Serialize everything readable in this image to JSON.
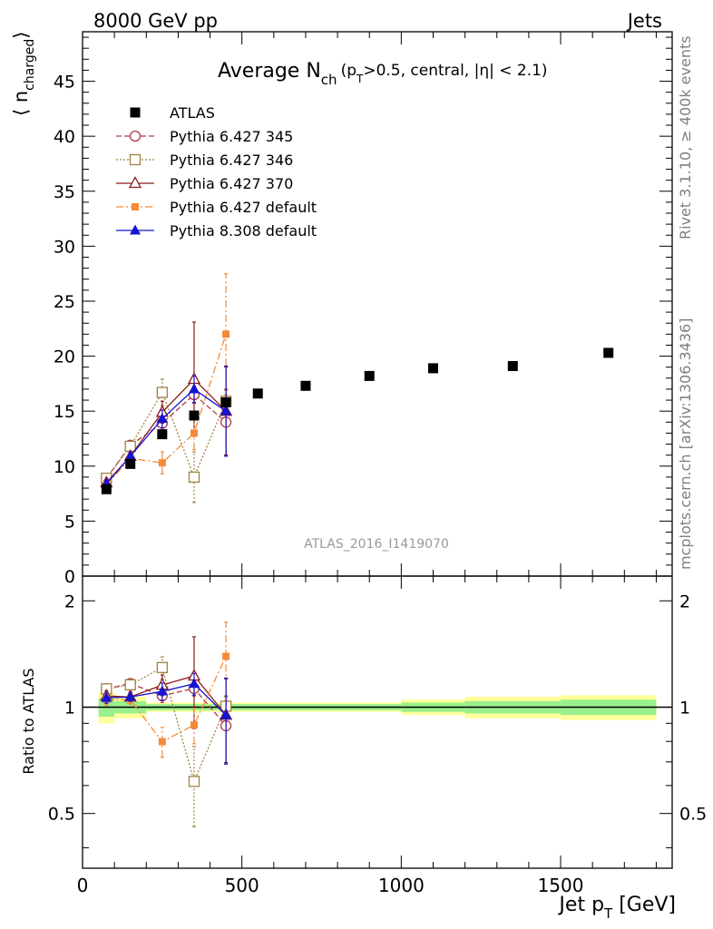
{
  "header": {
    "left": "8000 GeV pp",
    "right": "Jets"
  },
  "side": {
    "rivet": "Rivet 3.1.10, ≥ 400k events",
    "mcplots": "mcplots.cern.ch [arXiv:1306.3436]"
  },
  "chart_data": {
    "type": "scatter",
    "title_main": "Average N",
    "title_sub": "ch",
    "title_cut": "(p",
    "title_cut_sub": "T",
    "title_cut_rest": ">0.5, central, |η| < 2.1)",
    "ylabel_pre": "⟨ n",
    "ylabel_sub": "charged",
    "ylabel_post": "⟩",
    "xlabel_pre": "Jet p",
    "xlabel_sub": "T",
    "xlabel_post": " [GeV]",
    "ratio_ylabel": "Ratio to ATLAS",
    "watermark": "ATLAS_2016_I1419070",
    "xlim": [
      0,
      1850
    ],
    "ylim": [
      0,
      49.5
    ],
    "ratio_ylim": [
      0.35,
      2.35
    ],
    "xticks": [
      "0",
      "500",
      "1000",
      "1500"
    ],
    "xtick_values": [
      0,
      500,
      1000,
      1500
    ],
    "yticks": [
      "0",
      "5",
      "10",
      "15",
      "20",
      "25",
      "30",
      "35",
      "40",
      "45"
    ],
    "ytick_values": [
      0,
      5,
      10,
      15,
      20,
      25,
      30,
      35,
      40,
      45
    ],
    "ratio_yticks": [
      "0.5",
      "1",
      "2"
    ],
    "ratio_ytick_values": [
      0.5,
      1,
      2
    ],
    "reference": {
      "name": "ATLAS",
      "x": [
        75,
        150,
        250,
        350,
        450,
        550,
        700,
        900,
        1100,
        1350,
        1650
      ],
      "xlow": [
        50,
        100,
        200,
        300,
        400,
        500,
        600,
        800,
        1000,
        1200,
        1500
      ],
      "xhigh": [
        100,
        200,
        300,
        400,
        500,
        600,
        800,
        1000,
        1200,
        1500,
        1800
      ],
      "y": [
        7.9,
        10.2,
        12.9,
        14.6,
        15.8,
        16.6,
        17.3,
        18.2,
        18.9,
        19.1,
        20.3
      ],
      "band_inner": [
        0.06,
        0.04,
        0.02,
        0.02,
        0.02,
        0.02,
        0.02,
        0.02,
        0.03,
        0.04,
        0.05
      ],
      "band_outer": [
        0.1,
        0.07,
        0.03,
        0.03,
        0.03,
        0.03,
        0.03,
        0.03,
        0.05,
        0.07,
        0.08
      ]
    },
    "series": [
      {
        "name": "Pythia 6.427 345",
        "color": "#b03a48",
        "marker": "circle-open",
        "dash": "6,3",
        "x": [
          75,
          150,
          250,
          350,
          450
        ],
        "y": [
          8.9,
          11.9,
          13.9,
          16.5,
          14.0
        ],
        "err": [
          0.3,
          0.3,
          0.6,
          0.8,
          3.0
        ]
      },
      {
        "name": "Pythia 6.427 346",
        "color": "#a08240",
        "marker": "square-open",
        "dash": "2,2",
        "x": [
          75,
          150,
          250,
          350,
          450
        ],
        "y": [
          8.9,
          11.8,
          16.7,
          9.0,
          15.9
        ],
        "err": [
          0.3,
          0.3,
          1.2,
          2.3,
          1.0
        ]
      },
      {
        "name": "Pythia 6.427 370",
        "color": "#8b1a1a",
        "marker": "triangle-open",
        "dash": "",
        "x": [
          75,
          150,
          250,
          350,
          450
        ],
        "y": [
          8.5,
          10.9,
          14.9,
          17.9,
          15.0
        ],
        "err": [
          0.3,
          0.4,
          1.0,
          5.2,
          4.0
        ]
      },
      {
        "name": "Pythia 6.427 default",
        "color": "#f58a38",
        "marker": "square-filled",
        "dash": "8,3,2,3",
        "x": [
          75,
          150,
          250,
          350,
          450
        ],
        "y": [
          8.3,
          10.7,
          10.3,
          13.0,
          22.0
        ],
        "err": [
          0.3,
          0.3,
          1.0,
          1.5,
          5.5
        ]
      },
      {
        "name": "Pythia 8.308 default",
        "color": "#1414d2",
        "marker": "triangle-filled",
        "dash": "",
        "x": [
          75,
          150,
          250,
          350,
          450
        ],
        "y": [
          8.4,
          10.9,
          14.3,
          17.0,
          15.0
        ],
        "err": [
          0.3,
          0.3,
          0.8,
          1.2,
          4.1
        ]
      }
    ]
  }
}
